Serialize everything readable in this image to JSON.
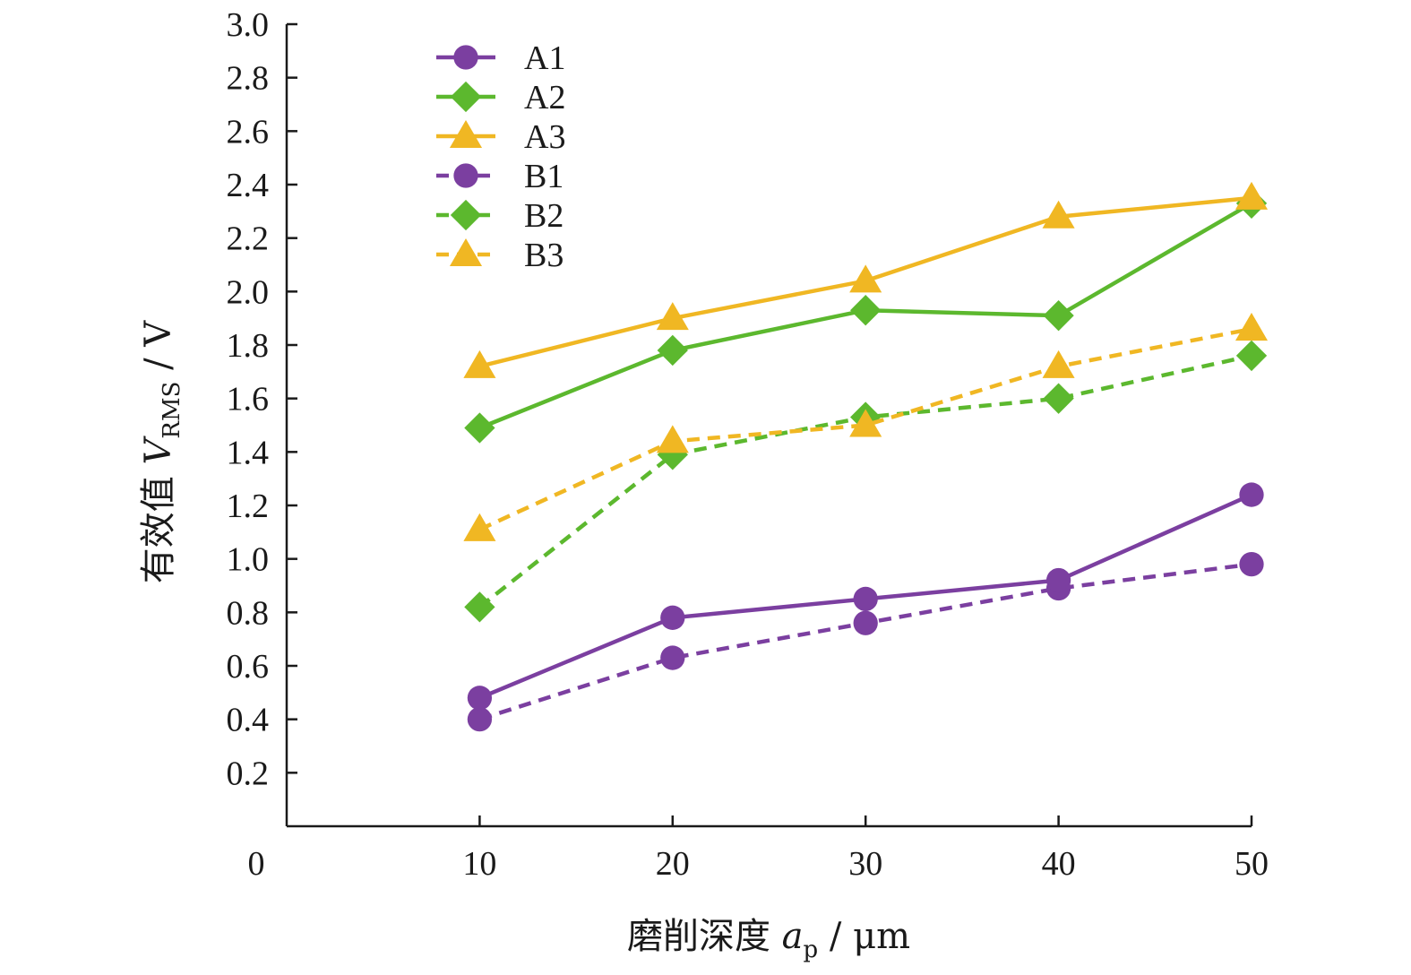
{
  "chart_data": {
    "type": "line",
    "xlabel_main": "磨削深度 ",
    "xlabel_var": "a",
    "xlabel_sub": "p",
    "xlabel_unit": " / μm",
    "ylabel_main": "有效值 ",
    "ylabel_var": "V",
    "ylabel_sub": "RMS",
    "ylabel_unit": " / V",
    "x_ticks": [
      0,
      10,
      20,
      30,
      40,
      50
    ],
    "y_ticks": [
      0.2,
      0.4,
      0.6,
      0.8,
      1.0,
      1.2,
      1.4,
      1.6,
      1.8,
      2.0,
      2.2,
      2.4,
      2.6,
      2.8,
      3.0
    ],
    "xlim": [
      0,
      50
    ],
    "ylim": [
      0,
      3.0
    ],
    "grid": false,
    "legend_position": "top-left",
    "x": [
      10,
      20,
      30,
      40,
      50
    ],
    "series": [
      {
        "name": "A1",
        "values": [
          0.48,
          0.78,
          0.85,
          0.92,
          1.24
        ],
        "color": "#7b3fa0",
        "marker": "circle",
        "dash": "solid"
      },
      {
        "name": "A2",
        "values": [
          1.49,
          1.78,
          1.93,
          1.91,
          2.33
        ],
        "color": "#5cb82e",
        "marker": "diamond",
        "dash": "solid"
      },
      {
        "name": "A3",
        "values": [
          1.72,
          1.9,
          2.04,
          2.28,
          2.35
        ],
        "color": "#f0b723",
        "marker": "triangle",
        "dash": "solid"
      },
      {
        "name": "B1",
        "values": [
          0.4,
          0.63,
          0.76,
          0.89,
          0.98
        ],
        "color": "#7b3fa0",
        "marker": "circle",
        "dash": "dashed"
      },
      {
        "name": "B2",
        "values": [
          0.82,
          1.39,
          1.53,
          1.6,
          1.76
        ],
        "color": "#5cb82e",
        "marker": "diamond",
        "dash": "dashed"
      },
      {
        "name": "B3",
        "values": [
          1.11,
          1.44,
          1.5,
          1.72,
          1.86
        ],
        "color": "#f0b723",
        "marker": "triangle",
        "dash": "dashed"
      }
    ]
  }
}
